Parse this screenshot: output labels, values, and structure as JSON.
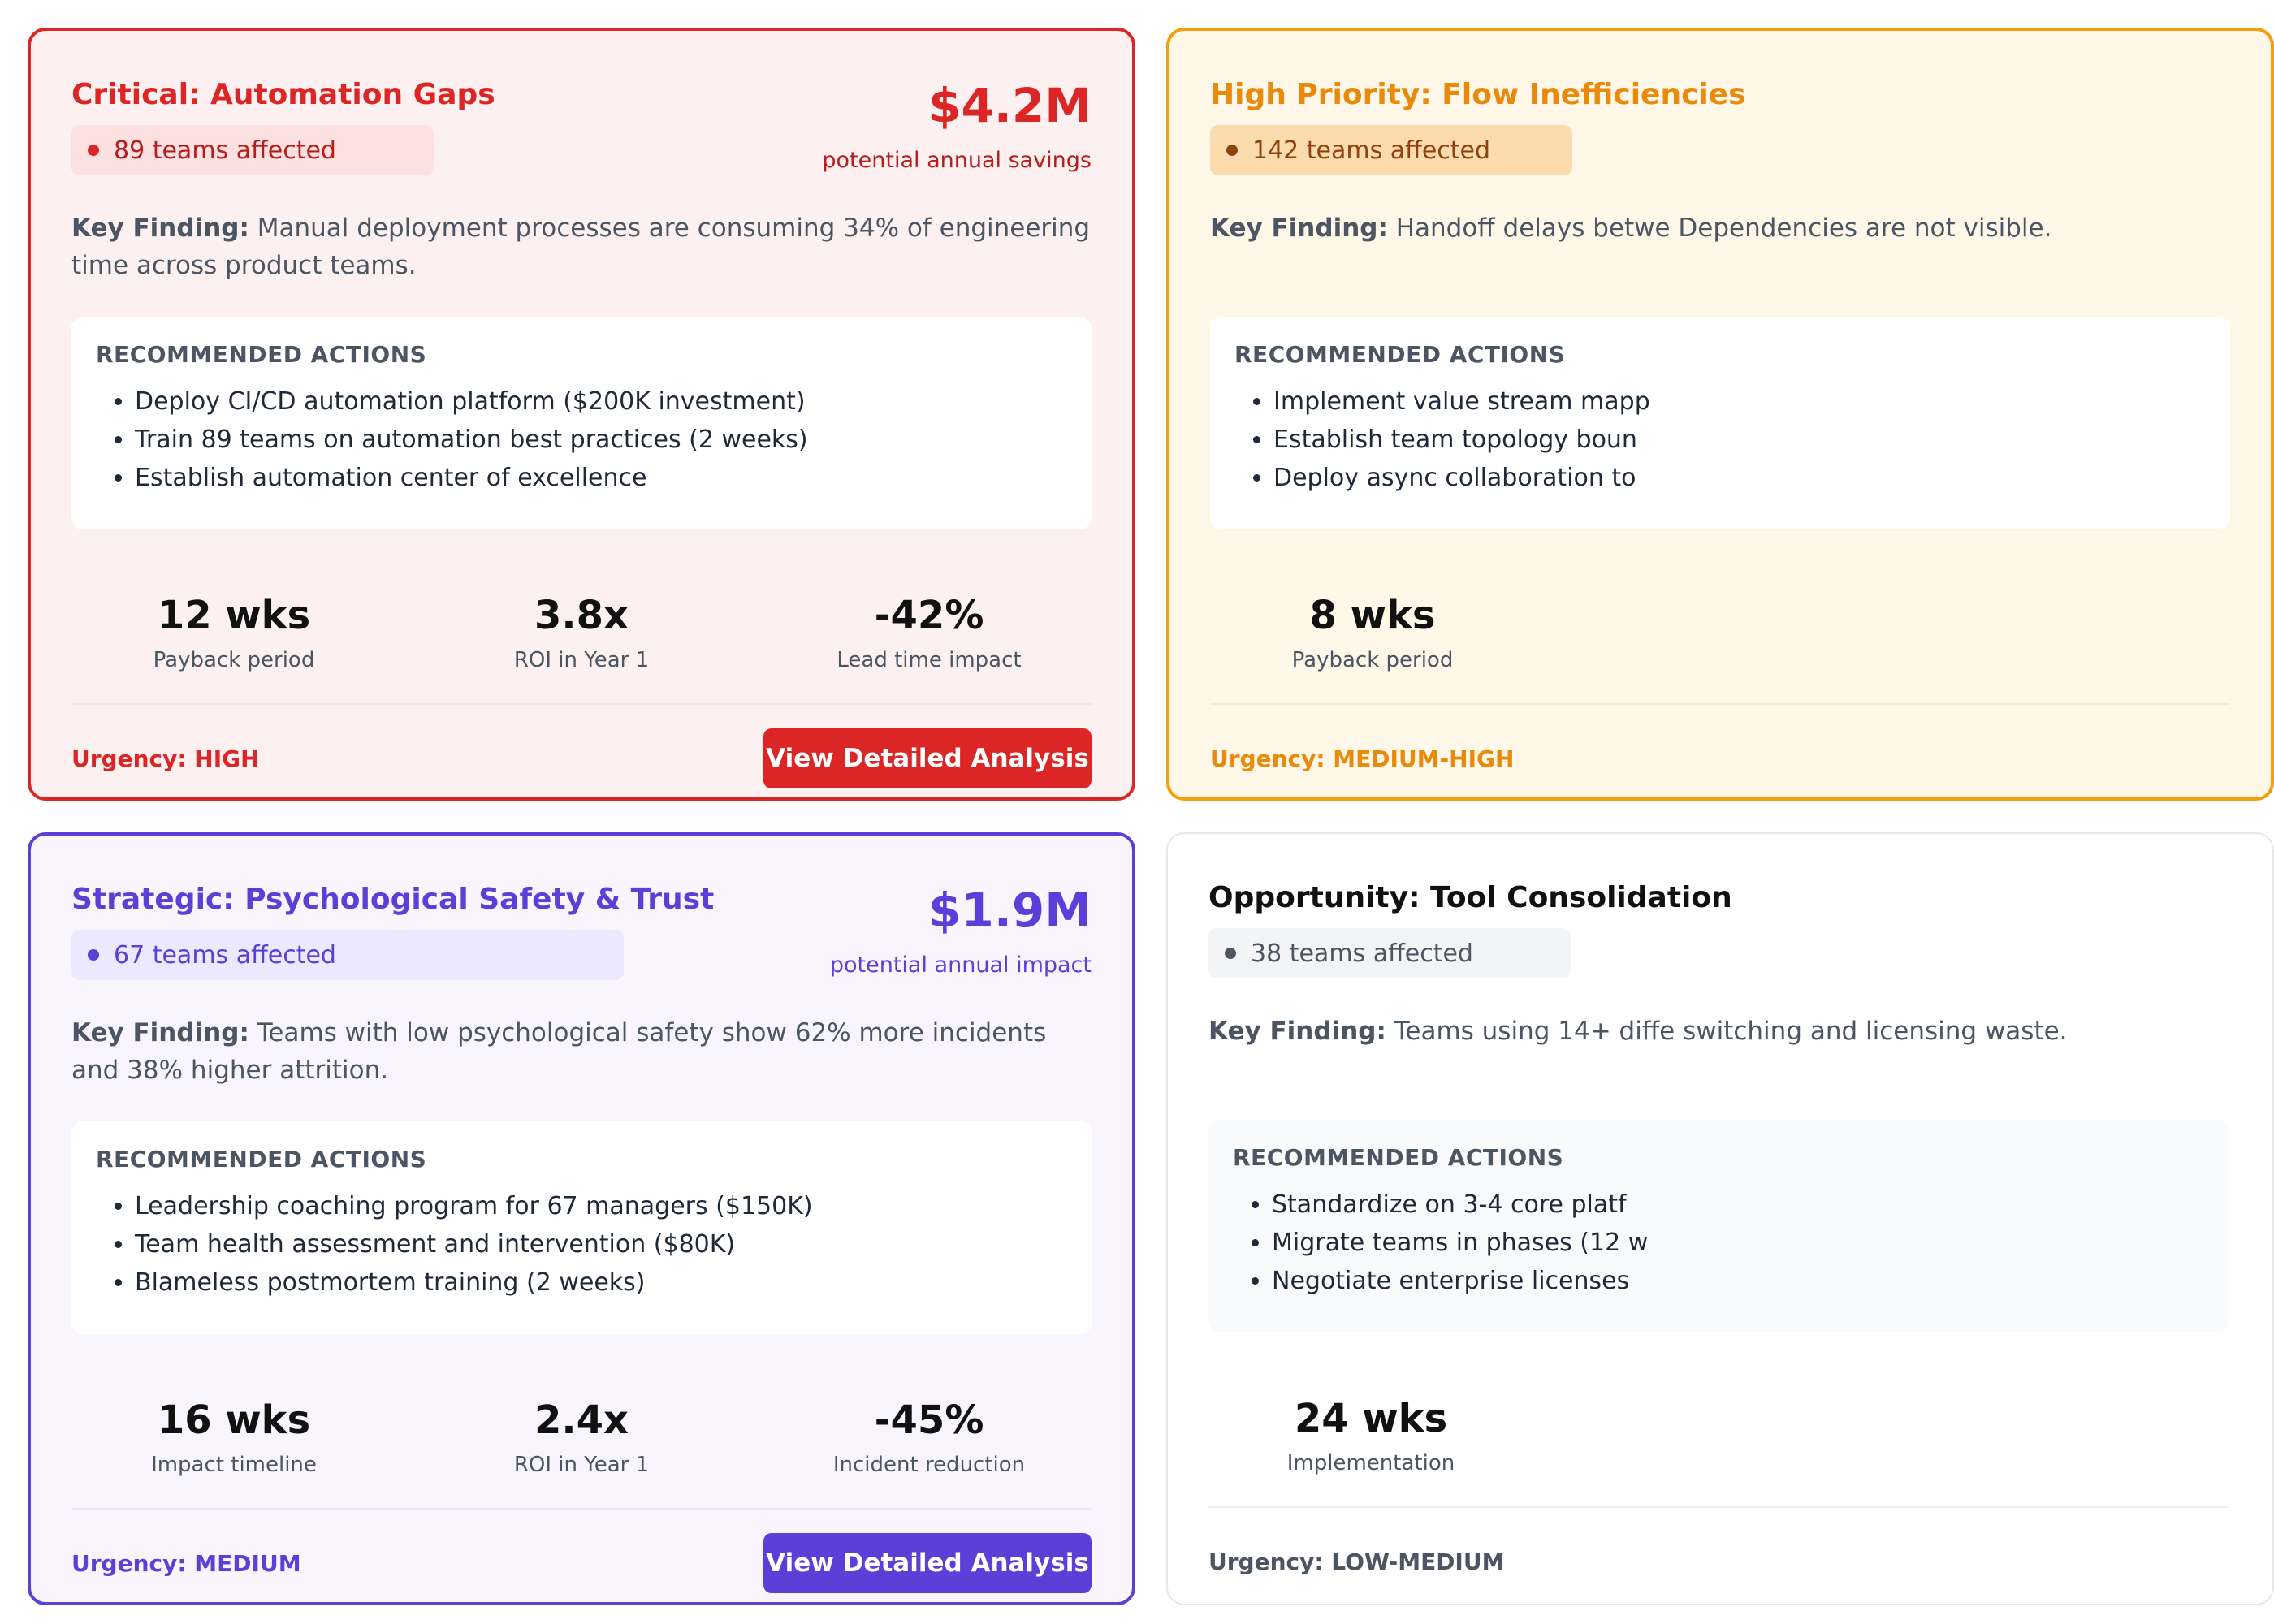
{
  "cards": [
    {
      "title": "Critical: Automation Gaps",
      "badge": "89 teams affected",
      "amount": "$4.2M",
      "amount_label": "potential annual savings",
      "finding_label": "Key Finding:",
      "finding_text": " Manual deployment processes are consuming 34% of engineering time across product teams.",
      "actions_heading": "RECOMMENDED ACTIONS",
      "actions": [
        "Deploy CI/CD automation platform ($200K investment)",
        "Train 89 teams on automation best practices (2 weeks)",
        "Establish automation center of excellence"
      ],
      "metrics": [
        {
          "value": "12 wks",
          "label": "Payback period"
        },
        {
          "value": "3.8x",
          "label": "ROI in Year 1"
        },
        {
          "value": "-42%",
          "label": "Lead time impact"
        }
      ],
      "urgency": "Urgency: HIGH",
      "button": "View Detailed Analysis",
      "accent": "#dc2626"
    },
    {
      "title": "High Priority: Flow Inefficiencies",
      "badge": "142 teams affected",
      "amount": "",
      "amount_label": "",
      "finding_label": "Key Finding:",
      "finding_text": " Handoff delays betwe Dependencies are not visible.",
      "actions_heading": "RECOMMENDED ACTIONS",
      "actions": [
        "Implement value stream mapp",
        "Establish team topology boun",
        "Deploy async collaboration to"
      ],
      "metrics": [
        {
          "value": "8 wks",
          "label": "Payback period"
        },
        {
          "value": "",
          "label": ""
        },
        {
          "value": "",
          "label": ""
        }
      ],
      "urgency": "Urgency: MEDIUM-HIGH",
      "button": "",
      "accent": "#f59e0b"
    },
    {
      "title": "Strategic: Psychological Safety & Trust",
      "badge": "67 teams affected",
      "amount": "$1.9M",
      "amount_label": "potential annual impact",
      "finding_label": "Key Finding:",
      "finding_text": " Teams with low psychological safety show 62% more incidents and 38% higher attrition.",
      "actions_heading": "RECOMMENDED ACTIONS",
      "actions": [
        "Leadership coaching program for 67 managers ($150K)",
        "Team health assessment and intervention ($80K)",
        "Blameless postmortem training (2 weeks)"
      ],
      "metrics": [
        {
          "value": "16 wks",
          "label": "Impact timeline"
        },
        {
          "value": "2.4x",
          "label": "ROI in Year 1"
        },
        {
          "value": "-45%",
          "label": "Incident reduction"
        }
      ],
      "urgency": "Urgency: MEDIUM",
      "button": "View Detailed Analysis",
      "accent": "#5b3fd6"
    },
    {
      "title": "Opportunity: Tool Consolidation",
      "badge": "38 teams affected",
      "amount": "",
      "amount_label": "",
      "finding_label": "Key Finding:",
      "finding_text": " Teams using 14+ diffe switching and licensing waste.",
      "actions_heading": "RECOMMENDED ACTIONS",
      "actions": [
        "Standardize on 3-4 core platf",
        "Migrate teams in phases (12 w",
        "Negotiate enterprise licenses"
      ],
      "metrics": [
        {
          "value": "24 wks",
          "label": "Implementation"
        },
        {
          "value": "",
          "label": ""
        },
        {
          "value": "",
          "label": ""
        }
      ],
      "urgency": "Urgency: LOW-MEDIUM",
      "button": "",
      "accent": "#4b5563"
    }
  ]
}
